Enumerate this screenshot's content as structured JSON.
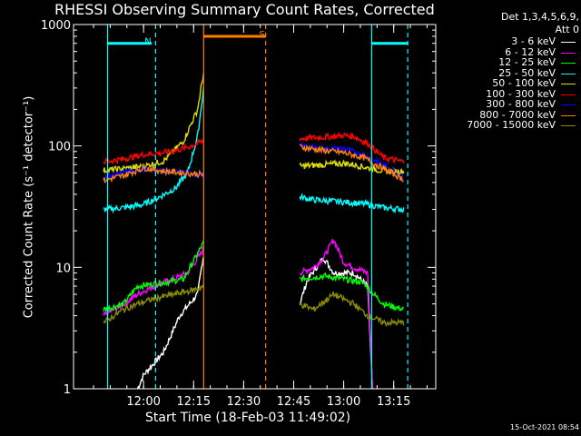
{
  "chart_data": {
    "type": "line",
    "title": "RHESSI Observing Summary Count Rates, Corrected",
    "ylabel": "Corrected Count Rate (s⁻¹ detector⁻¹)",
    "xlabel": "Start Time (18-Feb-03 11:49:02)",
    "yscale": "log",
    "ylim": [
      1,
      1000
    ],
    "y_ticks": [
      1,
      10,
      100,
      1000
    ],
    "y_tick_labels": [
      "1",
      "10",
      "100",
      "1000"
    ],
    "x_ticks": [
      "12:00",
      "12:15",
      "12:30",
      "12:45",
      "13:00",
      "13:15"
    ],
    "legend_title": [
      "Det 1,3,4,5,6,9,",
      "Att 0"
    ],
    "legend_position": "right",
    "series": [
      {
        "name": "3 - 6 keV",
        "color": "#ffffff",
        "pre": [
          [
            11.97,
            1.0
          ],
          [
            12.0,
            1.3
          ],
          [
            12.1,
            2.0
          ],
          [
            12.18,
            4.0
          ],
          [
            12.27,
            6.0
          ],
          [
            12.3,
            13.0
          ]
        ],
        "post": [
          [
            12.78,
            5.0
          ],
          [
            12.82,
            8.0
          ],
          [
            12.9,
            12.0
          ],
          [
            12.95,
            9.0
          ],
          [
            13.05,
            9.0
          ],
          [
            13.12,
            7.0
          ],
          [
            13.15,
            0.6
          ]
        ]
      },
      {
        "name": "6 - 12 keV",
        "color": "#ff00ff",
        "pre": [
          [
            11.8,
            4.0
          ],
          [
            11.9,
            5.0
          ],
          [
            11.97,
            6.0
          ],
          [
            12.05,
            7.0
          ],
          [
            12.15,
            8.0
          ],
          [
            12.22,
            9.0
          ],
          [
            12.3,
            14.0
          ]
        ],
        "post": [
          [
            12.78,
            9.0
          ],
          [
            12.85,
            10.0
          ],
          [
            12.9,
            12.0
          ],
          [
            12.95,
            17.0
          ],
          [
            13.0,
            11.0
          ],
          [
            13.05,
            10.0
          ],
          [
            13.12,
            9.0
          ],
          [
            13.15,
            0.6
          ]
        ]
      },
      {
        "name": "12 - 25 keV",
        "color": "#00ff00",
        "pre": [
          [
            11.8,
            4.5
          ],
          [
            11.9,
            5.0
          ],
          [
            11.97,
            7.0
          ],
          [
            12.1,
            7.5
          ],
          [
            12.2,
            8.0
          ],
          [
            12.3,
            16.0
          ]
        ],
        "post": [
          [
            12.78,
            8.0
          ],
          [
            12.9,
            8.5
          ],
          [
            13.0,
            8.0
          ],
          [
            13.1,
            7.5
          ],
          [
            13.15,
            6.0
          ],
          [
            13.2,
            5.0
          ],
          [
            13.3,
            4.5
          ]
        ]
      },
      {
        "name": "25 - 50 keV",
        "color": "#00ffff",
        "pre": [
          [
            11.8,
            30.0
          ],
          [
            11.9,
            31.0
          ],
          [
            12.0,
            33.0
          ],
          [
            12.08,
            38.0
          ],
          [
            12.16,
            45.0
          ],
          [
            12.22,
            60.0
          ],
          [
            12.27,
            120.0
          ],
          [
            12.3,
            300.0
          ]
        ],
        "post": [
          [
            12.78,
            38.0
          ],
          [
            12.85,
            36.0
          ],
          [
            12.95,
            35.0
          ],
          [
            13.05,
            34.0
          ],
          [
            13.12,
            33.0
          ],
          [
            13.2,
            31.0
          ],
          [
            13.3,
            30.0
          ]
        ]
      },
      {
        "name": "50 - 100 keV",
        "color": "#dddd00",
        "pre": [
          [
            11.8,
            63.0
          ],
          [
            11.9,
            65.0
          ],
          [
            12.0,
            68.0
          ],
          [
            12.1,
            75.0
          ],
          [
            12.2,
            110.0
          ],
          [
            12.27,
            200.0
          ],
          [
            12.3,
            400.0
          ]
        ],
        "post": [
          [
            12.78,
            68.0
          ],
          [
            12.9,
            70.0
          ],
          [
            13.0,
            72.0
          ],
          [
            13.05,
            70.0
          ],
          [
            13.12,
            66.0
          ],
          [
            13.2,
            62.0
          ],
          [
            13.3,
            62.0
          ]
        ]
      },
      {
        "name": "100 - 300 keV",
        "color": "#ff0000",
        "pre": [
          [
            11.8,
            74.0
          ],
          [
            11.9,
            78.0
          ],
          [
            12.0,
            85.0
          ],
          [
            12.1,
            88.0
          ],
          [
            12.2,
            95.0
          ],
          [
            12.3,
            110.0
          ]
        ],
        "post": [
          [
            12.78,
            115.0
          ],
          [
            12.9,
            118.0
          ],
          [
            13.0,
            122.0
          ],
          [
            13.05,
            120.0
          ],
          [
            13.12,
            105.0
          ],
          [
            13.2,
            80.0
          ],
          [
            13.3,
            74.0
          ]
        ]
      },
      {
        "name": "300 - 800 keV",
        "color": "#0000ff",
        "pre": [
          [
            11.8,
            55.0
          ],
          [
            11.9,
            60.0
          ],
          [
            12.0,
            65.0
          ],
          [
            12.1,
            62.0
          ],
          [
            12.2,
            60.0
          ],
          [
            12.3,
            58.0
          ]
        ],
        "post": [
          [
            12.78,
            100.0
          ],
          [
            12.9,
            95.0
          ],
          [
            13.0,
            95.0
          ],
          [
            13.1,
            85.0
          ],
          [
            13.2,
            70.0
          ],
          [
            13.3,
            55.0
          ]
        ]
      },
      {
        "name": "800 - 7000 keV",
        "color": "#ff8000",
        "pre": [
          [
            11.8,
            52.0
          ],
          [
            11.9,
            57.0
          ],
          [
            12.0,
            66.0
          ],
          [
            12.1,
            62.0
          ],
          [
            12.2,
            60.0
          ],
          [
            12.3,
            58.0
          ]
        ],
        "post": [
          [
            12.78,
            98.0
          ],
          [
            12.9,
            92.0
          ],
          [
            13.0,
            88.0
          ],
          [
            13.1,
            80.0
          ],
          [
            13.2,
            65.0
          ],
          [
            13.3,
            53.0
          ]
        ]
      },
      {
        "name": "7000 - 15000 keV",
        "color": "#8b8b00",
        "pre": [
          [
            11.8,
            3.5
          ],
          [
            11.9,
            4.5
          ],
          [
            11.97,
            5.0
          ],
          [
            12.05,
            5.5
          ],
          [
            12.15,
            6.0
          ],
          [
            12.25,
            6.5
          ],
          [
            12.3,
            7.0
          ]
        ],
        "post": [
          [
            12.78,
            5.0
          ],
          [
            12.85,
            4.5
          ],
          [
            12.95,
            6.0
          ],
          [
            13.05,
            5.0
          ],
          [
            13.12,
            4.0
          ],
          [
            13.2,
            3.5
          ],
          [
            13.3,
            3.5
          ]
        ]
      }
    ],
    "flags": [
      {
        "label": "N",
        "color": "#00ffff",
        "x": [
          11.82,
          12.04
        ],
        "y": 700
      },
      {
        "label": "S",
        "color": "#ff8000",
        "x": [
          12.3,
          12.61
        ],
        "y": 800
      },
      {
        "label": "",
        "color": "#00ffff",
        "x": [
          13.14,
          13.32
        ],
        "y": 700
      }
    ],
    "vlines": [
      {
        "x": 11.82,
        "color": "#00ffff",
        "style": "solid"
      },
      {
        "x": 12.06,
        "color": "#00ffff",
        "style": "dashed"
      },
      {
        "x": 12.3,
        "color": "#ff8000",
        "style": "solid"
      },
      {
        "x": 12.61,
        "color": "#ff8000",
        "style": "dashed"
      },
      {
        "x": 13.14,
        "color": "#00ffff",
        "style": "solid"
      },
      {
        "x": 13.32,
        "color": "#00ffff",
        "style": "dashed"
      }
    ]
  },
  "timestamp": "15-Oct-2021 08:54"
}
